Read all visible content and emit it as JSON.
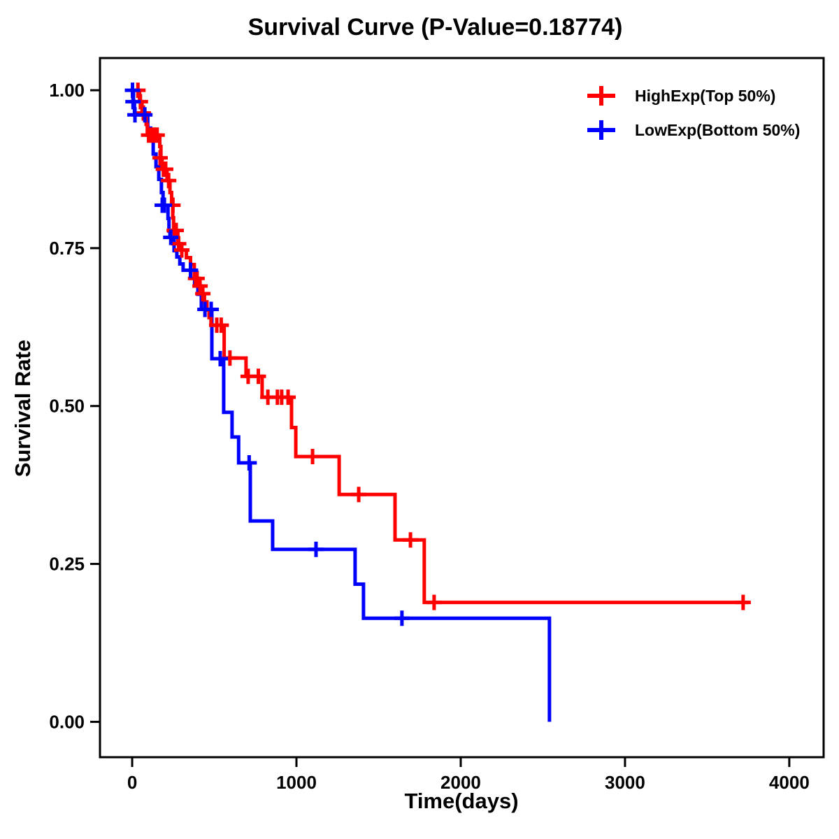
{
  "chart_data": {
    "type": "line",
    "subtype": "kaplan-meier-step-curves",
    "title": "Survival Curve (P-Value=0.18774)",
    "p_value": "0.18774",
    "xlabel": "Time(days)",
    "ylabel": "Survival Rate",
    "grid": "off",
    "x_axis": {
      "range": [
        -196,
        4209
      ],
      "ticks": [
        0,
        1000,
        2000,
        3000,
        4000
      ],
      "tick_labels": [
        "0",
        "1000",
        "2000",
        "3000",
        "4000"
      ]
    },
    "y_axis": {
      "range": [
        -0.056,
        1.051
      ],
      "ticks": [
        1.0,
        0.75,
        0.5,
        0.25,
        0.0
      ],
      "tick_labels": [
        "1.00",
        "0.75",
        "0.50",
        "0.25",
        "0.00"
      ]
    },
    "legend": {
      "position": "top-right",
      "marker": "plus"
    },
    "series": [
      {
        "name": "HighExp(Top 50%)",
        "color": "#FF0000",
        "start": [
          0,
          1.0
        ],
        "end_time": 3750,
        "steps": [
          [
            45,
            0.982
          ],
          [
            60,
            0.964
          ],
          [
            85,
            0.946
          ],
          [
            92,
            0.929
          ],
          [
            168,
            0.911
          ],
          [
            175,
            0.893
          ],
          [
            182,
            0.875
          ],
          [
            212,
            0.857
          ],
          [
            230,
            0.838
          ],
          [
            240,
            0.818
          ],
          [
            247,
            0.798
          ],
          [
            252,
            0.778
          ],
          [
            278,
            0.757
          ],
          [
            293,
            0.747
          ],
          [
            330,
            0.735
          ],
          [
            355,
            0.724
          ],
          [
            378,
            0.702
          ],
          [
            408,
            0.69
          ],
          [
            425,
            0.678
          ],
          [
            440,
            0.665
          ],
          [
            455,
            0.652
          ],
          [
            468,
            0.64
          ],
          [
            480,
            0.628
          ],
          [
            560,
            0.576
          ],
          [
            693,
            0.547
          ],
          [
            791,
            0.514
          ],
          [
            970,
            0.466
          ],
          [
            996,
            0.42
          ],
          [
            1260,
            0.36
          ],
          [
            1600,
            0.288
          ],
          [
            1778,
            0.189
          ]
        ],
        "censors": [
          [
            35,
            1.0
          ],
          [
            50,
            0.982
          ],
          [
            68,
            0.964
          ],
          [
            100,
            0.929
          ],
          [
            112,
            0.929
          ],
          [
            124,
            0.929
          ],
          [
            138,
            0.929
          ],
          [
            152,
            0.929
          ],
          [
            170,
            0.893
          ],
          [
            190,
            0.875
          ],
          [
            204,
            0.875
          ],
          [
            222,
            0.857
          ],
          [
            248,
            0.818
          ],
          [
            256,
            0.778
          ],
          [
            268,
            0.778
          ],
          [
            283,
            0.757
          ],
          [
            302,
            0.747
          ],
          [
            386,
            0.702
          ],
          [
            395,
            0.702
          ],
          [
            413,
            0.69
          ],
          [
            430,
            0.678
          ],
          [
            515,
            0.628
          ],
          [
            542,
            0.628
          ],
          [
            595,
            0.576
          ],
          [
            706,
            0.547
          ],
          [
            768,
            0.547
          ],
          [
            826,
            0.514
          ],
          [
            884,
            0.514
          ],
          [
            910,
            0.514
          ],
          [
            949,
            0.514
          ],
          [
            1098,
            0.42
          ],
          [
            1379,
            0.36
          ],
          [
            1694,
            0.288
          ],
          [
            1838,
            0.189
          ],
          [
            3719,
            0.189
          ]
        ]
      },
      {
        "name": "LowExp(Bottom 50%)",
        "color": "#0000FF",
        "start": [
          0,
          1.0
        ],
        "end_time": 2540,
        "steps": [
          [
            8,
            0.982
          ],
          [
            14,
            0.961
          ],
          [
            95,
            0.94
          ],
          [
            112,
            0.92
          ],
          [
            128,
            0.899
          ],
          [
            145,
            0.879
          ],
          [
            162,
            0.859
          ],
          [
            178,
            0.838
          ],
          [
            188,
            0.818
          ],
          [
            218,
            0.797
          ],
          [
            224,
            0.777
          ],
          [
            230,
            0.767
          ],
          [
            255,
            0.746
          ],
          [
            272,
            0.736
          ],
          [
            290,
            0.725
          ],
          [
            310,
            0.715
          ],
          [
            380,
            0.694
          ],
          [
            400,
            0.677
          ],
          [
            421,
            0.653
          ],
          [
            485,
            0.575
          ],
          [
            557,
            0.49
          ],
          [
            608,
            0.451
          ],
          [
            648,
            0.41
          ],
          [
            719,
            0.318
          ],
          [
            855,
            0.273
          ],
          [
            1357,
            0.218
          ],
          [
            1408,
            0.164
          ],
          [
            2540,
            0.0
          ]
        ],
        "censors": [
          [
            2,
            1.0
          ],
          [
            5,
            0.982
          ],
          [
            17,
            0.961
          ],
          [
            77,
            0.961
          ],
          [
            183,
            0.818
          ],
          [
            196,
            0.818
          ],
          [
            235,
            0.767
          ],
          [
            355,
            0.715
          ],
          [
            443,
            0.653
          ],
          [
            481,
            0.653
          ],
          [
            536,
            0.575
          ],
          [
            712,
            0.41
          ],
          [
            1119,
            0.273
          ],
          [
            1642,
            0.164
          ]
        ]
      }
    ]
  }
}
